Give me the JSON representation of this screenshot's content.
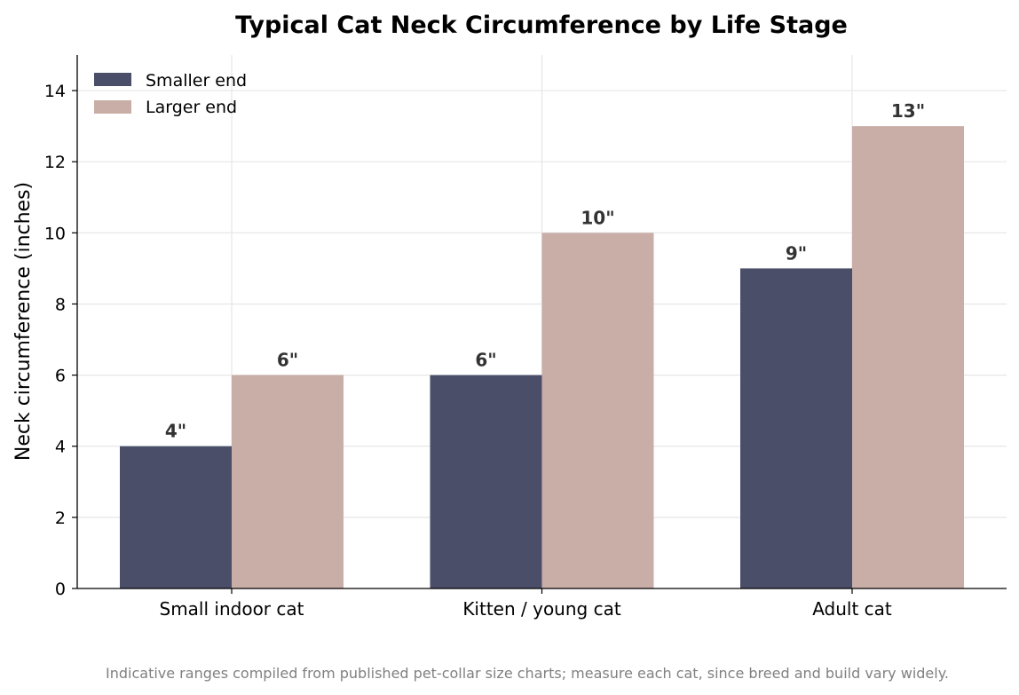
{
  "chart_data": {
    "type": "bar",
    "title": "Typical Cat Neck Circumference by Life Stage",
    "xlabel": "",
    "ylabel": "Neck circumference (inches)",
    "categories": [
      "Small indoor cat",
      "Kitten / young cat",
      "Adult cat"
    ],
    "series": [
      {
        "name": "Smaller end",
        "values": [
          4,
          6,
          9
        ],
        "labels": [
          "4\"",
          "6\"",
          "9\""
        ],
        "color": "#4a4e69"
      },
      {
        "name": "Larger end",
        "values": [
          6,
          10,
          13
        ],
        "labels": [
          "6\"",
          "10\"",
          "13\""
        ],
        "color": "#c9ada7"
      }
    ],
    "ylim": [
      0,
      15
    ],
    "yticks": [
      0,
      2,
      4,
      6,
      8,
      10,
      12,
      14
    ],
    "grid": true,
    "legend_position": "top-left",
    "footnote": "Indicative ranges compiled from published pet-collar size charts; measure each cat, since breed and build vary widely."
  }
}
